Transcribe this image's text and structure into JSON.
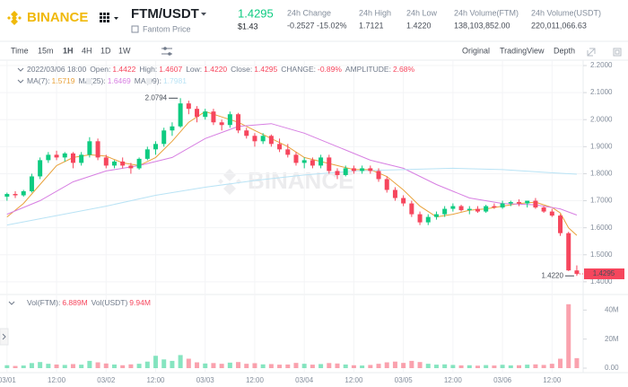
{
  "header": {
    "logo": "BINANCE",
    "pair": "FTM/USDT",
    "subtitle": "Fantom Price",
    "price": "1.4295",
    "price_usd": "$1.43",
    "stats": [
      {
        "label": "24h Change",
        "value": "-0.2527 -15.02%"
      },
      {
        "label": "24h High",
        "value": "1.7121"
      },
      {
        "label": "24h Low",
        "value": "1.4220"
      },
      {
        "label": "24h Volume(FTM)",
        "value": "138,103,852.00"
      },
      {
        "label": "24h Volume(USDT)",
        "value": "220,011,066.63"
      }
    ]
  },
  "toolbar": {
    "intervals": [
      "Time",
      "15m",
      "1H",
      "4H",
      "1D",
      "1W"
    ],
    "active_interval": 2,
    "views": [
      "Original",
      "TradingView",
      "Depth"
    ],
    "active_view": 0
  },
  "info": {
    "time": "2022/03/06 18:00",
    "fields": [
      {
        "label": "Open:",
        "value": "1.4422"
      },
      {
        "label": "High:",
        "value": "1.4607"
      },
      {
        "label": "Low:",
        "value": "1.4220"
      },
      {
        "label": "Close:",
        "value": "1.4295"
      },
      {
        "label": "CHANGE:",
        "value": "-0.89%"
      },
      {
        "label": "AMPLITUDE:",
        "value": "2.68%"
      }
    ]
  },
  "chart_data": {
    "type": "candlestick",
    "watermark": "BINANCE",
    "x": [
      0,
      2,
      4,
      6,
      8,
      10,
      12,
      14,
      16,
      18,
      20,
      22,
      24,
      26,
      28,
      30,
      32,
      34,
      36,
      38,
      40,
      42,
      44,
      46,
      48,
      50,
      52,
      54,
      56,
      58,
      60,
      62,
      64,
      66,
      68,
      70,
      72,
      74,
      76,
      78,
      80,
      82,
      84,
      86,
      88,
      90,
      92,
      94,
      96,
      98,
      100,
      102,
      104,
      106,
      108,
      110,
      112,
      114,
      116,
      118,
      120,
      122,
      124,
      126,
      128,
      130,
      132,
      134,
      136,
      138
    ],
    "open": [
      1.715,
      1.725,
      1.72,
      1.735,
      1.79,
      1.85,
      1.87,
      1.86,
      1.875,
      1.84,
      1.87,
      1.92,
      1.86,
      1.83,
      1.845,
      1.83,
      1.82,
      1.855,
      1.89,
      1.91,
      1.96,
      1.975,
      2.06,
      2.04,
      2.01,
      2.03,
      1.99,
      1.98,
      2.02,
      1.96,
      1.94,
      1.92,
      1.94,
      1.91,
      1.89,
      1.87,
      1.84,
      1.85,
      1.83,
      1.86,
      1.81,
      1.795,
      1.82,
      1.81,
      1.82,
      1.81,
      1.78,
      1.74,
      1.71,
      1.69,
      1.65,
      1.62,
      1.64,
      1.65,
      1.67,
      1.68,
      1.665,
      1.67,
      1.66,
      1.68,
      1.675,
      1.69,
      1.695,
      1.69,
      1.7,
      1.675,
      1.66,
      1.645,
      1.58,
      1.4422
    ],
    "high": [
      1.73,
      1.735,
      1.74,
      1.8,
      1.86,
      1.88,
      1.885,
      1.88,
      1.88,
      1.88,
      1.935,
      1.93,
      1.87,
      1.85,
      1.86,
      1.84,
      1.86,
      1.9,
      1.92,
      1.97,
      1.99,
      2.0794,
      2.07,
      2.05,
      2.04,
      2.04,
      2.0,
      2.03,
      2.025,
      1.97,
      1.95,
      1.95,
      1.945,
      1.93,
      1.91,
      1.88,
      1.86,
      1.86,
      1.87,
      1.87,
      1.82,
      1.83,
      1.83,
      1.83,
      1.83,
      1.82,
      1.79,
      1.75,
      1.72,
      1.7,
      1.66,
      1.65,
      1.66,
      1.68,
      1.69,
      1.685,
      1.68,
      1.68,
      1.685,
      1.69,
      1.7,
      1.7,
      1.705,
      1.7,
      1.71,
      1.68,
      1.67,
      1.65,
      1.585,
      1.4607
    ],
    "low": [
      1.7,
      1.71,
      1.715,
      1.73,
      1.78,
      1.84,
      1.85,
      1.845,
      1.82,
      1.83,
      1.86,
      1.85,
      1.82,
      1.82,
      1.82,
      1.8,
      1.815,
      1.85,
      1.87,
      1.9,
      1.94,
      1.97,
      2.02,
      1.99,
      2.0,
      1.98,
      1.96,
      1.97,
      1.95,
      1.93,
      1.9,
      1.91,
      1.9,
      1.88,
      1.86,
      1.83,
      1.82,
      1.82,
      1.82,
      1.8,
      1.78,
      1.79,
      1.8,
      1.8,
      1.8,
      1.77,
      1.73,
      1.7,
      1.68,
      1.64,
      1.61,
      1.61,
      1.63,
      1.64,
      1.66,
      1.66,
      1.65,
      1.655,
      1.655,
      1.67,
      1.67,
      1.68,
      1.68,
      1.675,
      1.67,
      1.655,
      1.64,
      1.57,
      1.44,
      1.422
    ],
    "close": [
      1.725,
      1.72,
      1.735,
      1.79,
      1.85,
      1.87,
      1.86,
      1.875,
      1.84,
      1.87,
      1.92,
      1.86,
      1.83,
      1.845,
      1.83,
      1.82,
      1.855,
      1.89,
      1.91,
      1.96,
      1.975,
      2.06,
      2.04,
      2.01,
      2.03,
      1.99,
      1.98,
      2.02,
      1.96,
      1.94,
      1.92,
      1.94,
      1.91,
      1.89,
      1.87,
      1.84,
      1.85,
      1.83,
      1.86,
      1.81,
      1.795,
      1.82,
      1.81,
      1.82,
      1.81,
      1.78,
      1.74,
      1.71,
      1.69,
      1.65,
      1.62,
      1.64,
      1.65,
      1.67,
      1.68,
      1.665,
      1.67,
      1.66,
      1.68,
      1.675,
      1.69,
      1.695,
      1.69,
      1.7,
      1.675,
      1.66,
      1.645,
      1.58,
      1.4422,
      1.4295
    ],
    "volume": [
      2.0,
      1.5,
      1.8,
      3.5,
      4.2,
      3.0,
      2.5,
      2.2,
      2.8,
      2.4,
      5.0,
      4.0,
      3.2,
      2.5,
      2.0,
      2.6,
      3.0,
      4.5,
      8.5,
      6.0,
      5.0,
      9.0,
      6.5,
      4.0,
      3.2,
      3.5,
      3.0,
      3.8,
      4.2,
      3.0,
      3.4,
      2.6,
      2.8,
      2.4,
      2.5,
      3.6,
      3.0,
      2.4,
      2.8,
      3.5,
      3.2,
      2.5,
      2.0,
      1.8,
      2.2,
      3.0,
      4.0,
      4.5,
      3.6,
      5.0,
      4.2,
      3.0,
      2.4,
      2.6,
      2.2,
      1.9,
      2.0,
      1.7,
      2.1,
      1.8,
      2.3,
      1.9,
      2.0,
      2.4,
      2.6,
      2.2,
      3.0,
      6.5,
      44,
      6.889
    ],
    "up_color": "#0ecb81",
    "down_color": "#f6465d",
    "last_price_label": "1.4295",
    "high_label": "2.0794",
    "low_label": "1.4220",
    "xlim": [
      -1.7,
      139.1
    ],
    "xticks": [
      {
        "value": 0,
        "label": "03/01"
      },
      {
        "value": 12,
        "label": "12:00"
      },
      {
        "value": 24,
        "label": "03/02"
      },
      {
        "value": 36,
        "label": "12:00"
      },
      {
        "value": 48,
        "label": "03/03"
      },
      {
        "value": 60,
        "label": "12:00"
      },
      {
        "value": 72,
        "label": "03/04"
      },
      {
        "value": 84,
        "label": "12:00"
      },
      {
        "value": 96,
        "label": "03/05"
      },
      {
        "value": 108,
        "label": "12:00"
      },
      {
        "value": 120,
        "label": "03/06"
      },
      {
        "value": 132,
        "label": "12:00"
      }
    ],
    "ylim": [
      1.363,
      2.22
    ],
    "yticks": [
      {
        "value": 1.4,
        "label": "1.4000"
      },
      {
        "value": 1.5,
        "label": "1.5000"
      },
      {
        "value": 1.6,
        "label": "1.6000"
      },
      {
        "value": 1.7,
        "label": "1.7000"
      },
      {
        "value": 1.8,
        "label": "1.8000"
      },
      {
        "value": 1.9,
        "label": "1.9000"
      },
      {
        "value": 2.0,
        "label": "2.0000"
      },
      {
        "value": 2.1,
        "label": "2.1000"
      },
      {
        "value": 2.2,
        "label": "2.2000"
      }
    ],
    "vlim": [
      0,
      47.6
    ],
    "vticks": [
      {
        "value": 0,
        "label": "0.00"
      },
      {
        "value": 20,
        "label": "20M"
      },
      {
        "value": 40,
        "label": "40M"
      }
    ],
    "volume_legend": [
      {
        "name": "Vol(FTM):",
        "value": "6.889M",
        "color": "#f6465d"
      },
      {
        "name": "Vol(USDT)",
        "value": "9.94M",
        "color": "#f6465d"
      }
    ],
    "ma": [
      {
        "name": "MA(7):",
        "value_label": "1.5719",
        "color": "#e9a23b",
        "x": [
          0,
          4,
          8,
          12,
          16,
          20,
          24,
          28,
          32,
          36,
          40,
          44,
          48,
          52,
          56,
          60,
          64,
          68,
          72,
          76,
          80,
          84,
          88,
          92,
          96,
          100,
          104,
          108,
          112,
          116,
          120,
          124,
          128,
          132,
          134,
          136,
          138
        ],
        "values": [
          1.64,
          1.69,
          1.76,
          1.83,
          1.86,
          1.87,
          1.865,
          1.84,
          1.83,
          1.86,
          1.92,
          1.99,
          2.03,
          2.01,
          1.99,
          1.96,
          1.93,
          1.9,
          1.86,
          1.845,
          1.83,
          1.815,
          1.815,
          1.79,
          1.74,
          1.68,
          1.64,
          1.65,
          1.665,
          1.67,
          1.68,
          1.69,
          1.695,
          1.675,
          1.655,
          1.6,
          1.5719
        ]
      },
      {
        "name": "MA(25):",
        "value_label": "1.6469",
        "color": "#d77fe2",
        "x": [
          0,
          8,
          16,
          24,
          32,
          40,
          48,
          56,
          64,
          72,
          80,
          88,
          96,
          104,
          112,
          120,
          128,
          134,
          138
        ],
        "values": [
          1.65,
          1.7,
          1.77,
          1.81,
          1.83,
          1.86,
          1.93,
          1.975,
          1.985,
          1.95,
          1.9,
          1.85,
          1.82,
          1.76,
          1.71,
          1.69,
          1.685,
          1.67,
          1.6469
        ]
      },
      {
        "name": "MA(99):",
        "value_label": "1.7981",
        "color": "#b9e3f5",
        "x": [
          0,
          12,
          24,
          36,
          48,
          60,
          72,
          84,
          96,
          108,
          120,
          130,
          138
        ],
        "values": [
          1.61,
          1.645,
          1.68,
          1.72,
          1.75,
          1.775,
          1.795,
          1.81,
          1.815,
          1.82,
          1.815,
          1.805,
          1.7981
        ]
      }
    ]
  }
}
